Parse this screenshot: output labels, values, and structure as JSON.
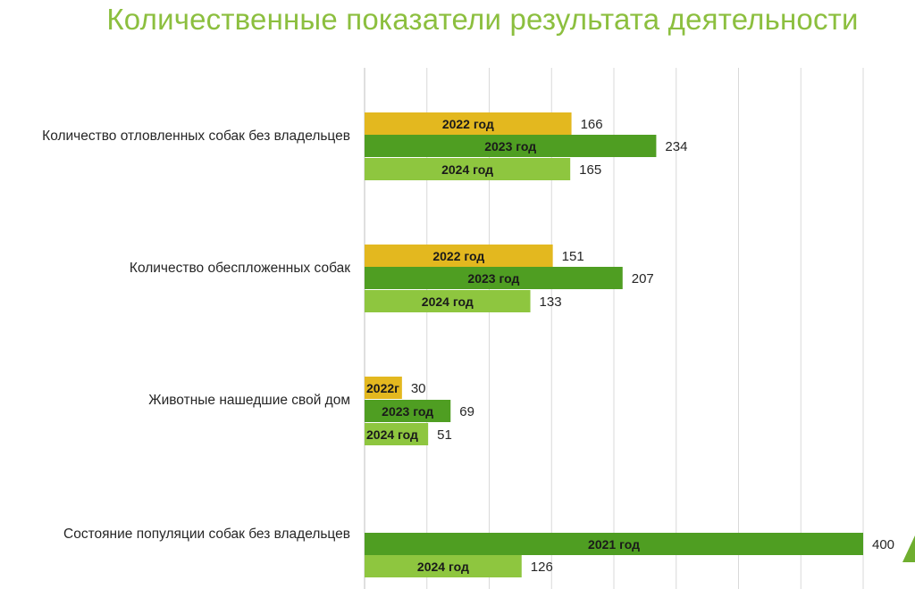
{
  "title": "Количественные показатели результата деятельности",
  "colors": {
    "title": "#8cbf3f",
    "y2022": "#e3b81f",
    "y2023": "#4f9e22",
    "y2024": "#8ec63f",
    "y2021": "#4f9e22"
  },
  "chart_data": {
    "type": "bar",
    "orientation": "horizontal",
    "title": "Количественные показатели результата деятельности",
    "xlim": [
      0,
      400
    ],
    "grid": true,
    "categories": [
      {
        "name": "Количество отловленных собак без владельцев",
        "bars": [
          {
            "label": "2022 год",
            "value": 166,
            "color_key": "y2022"
          },
          {
            "label": "2023 год",
            "value": 234,
            "color_key": "y2023"
          },
          {
            "label": "2024 год",
            "value": 165,
            "color_key": "y2024"
          }
        ]
      },
      {
        "name": "Количество обеспложенных собак",
        "bars": [
          {
            "label": "2022 год",
            "value": 151,
            "color_key": "y2022"
          },
          {
            "label": "2023 год",
            "value": 207,
            "color_key": "y2023"
          },
          {
            "label": "2024 год",
            "value": 133,
            "color_key": "y2024"
          }
        ]
      },
      {
        "name": "Животные нашедшие свой дом",
        "bars": [
          {
            "label": "2022г",
            "value": 30,
            "color_key": "y2022"
          },
          {
            "label": "2023 год",
            "value": 69,
            "color_key": "y2023"
          },
          {
            "label": "2024 год",
            "value": 51,
            "color_key": "y2024"
          }
        ]
      },
      {
        "name": "Состояние популяции собак без владельцев",
        "bars": [
          {
            "label": "2021 год",
            "value": 400,
            "color_key": "y2021"
          },
          {
            "label": "2024 год",
            "value": 126,
            "color_key": "y2024"
          }
        ]
      }
    ]
  }
}
